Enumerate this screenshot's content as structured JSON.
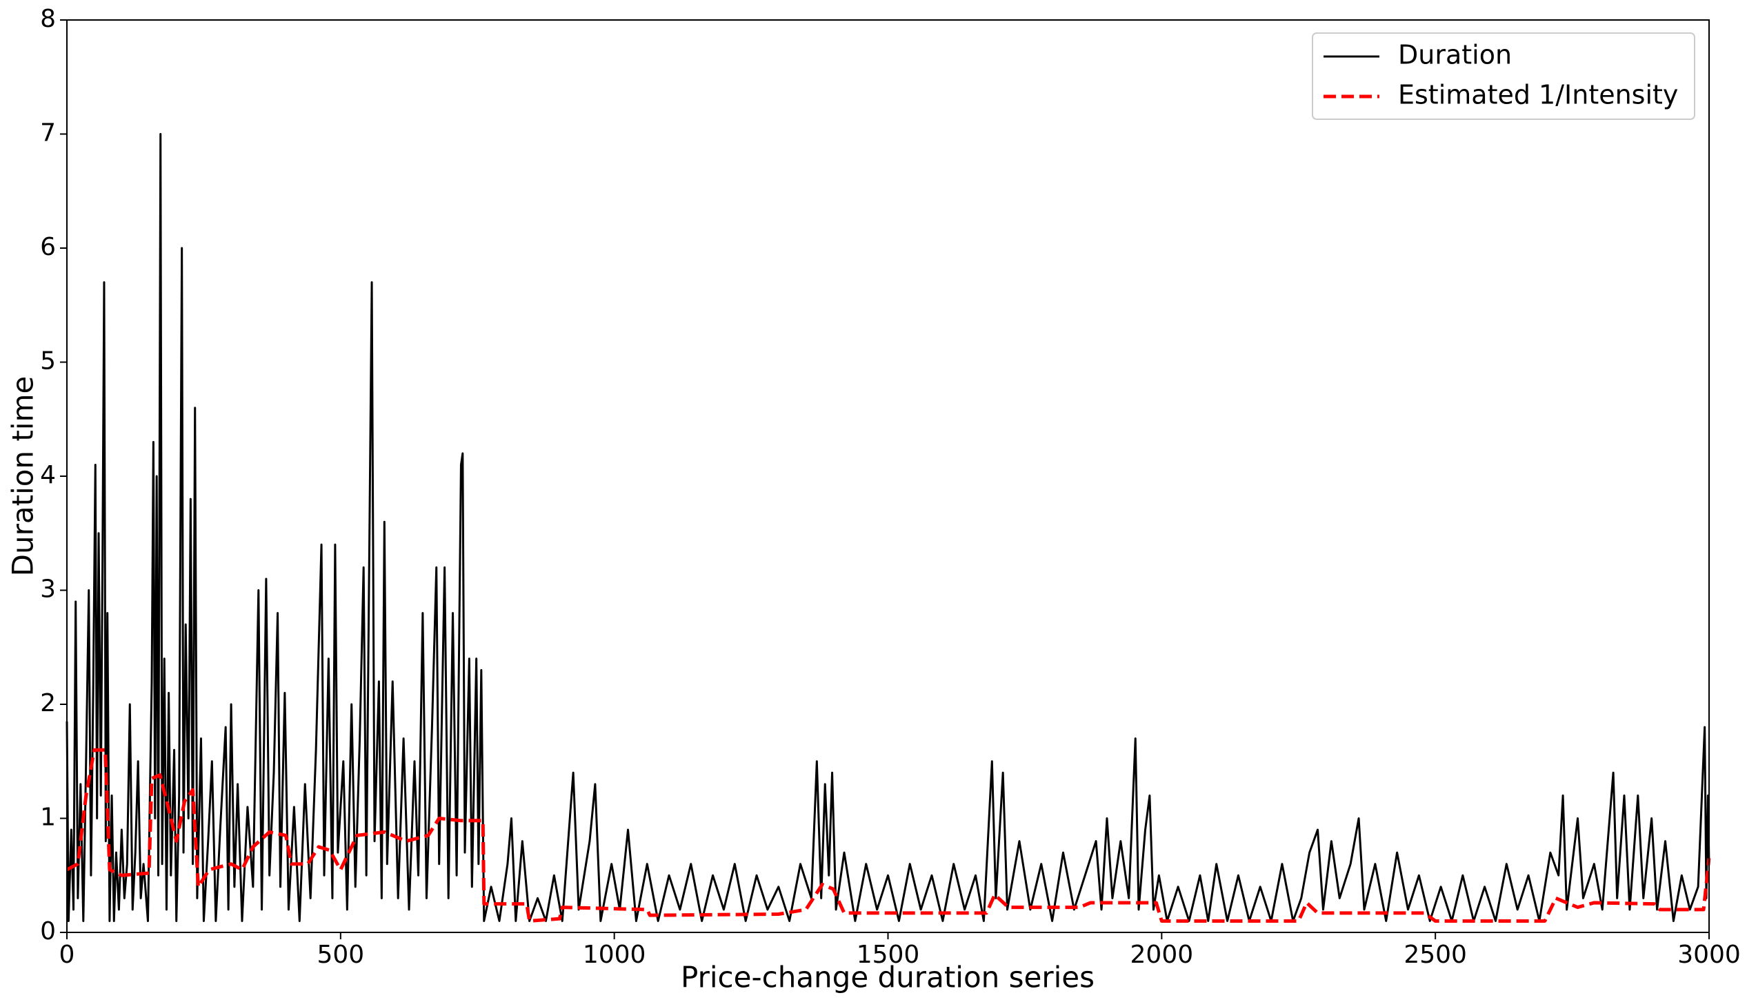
{
  "chart_data": {
    "type": "line",
    "xlabel": "Price-change duration series",
    "ylabel": "Duration time",
    "xlim": [
      0,
      3000
    ],
    "xticks": [
      0,
      500,
      1000,
      1500,
      2000,
      2500,
      3000
    ],
    "ylim": [
      0,
      8
    ],
    "yticks": [
      0,
      1,
      2,
      3,
      4,
      5,
      6,
      7,
      8
    ],
    "legend": "upper right",
    "series": [
      {
        "name": "Duration",
        "color": "#000000",
        "dash": "solid",
        "x": [
          0,
          3,
          8,
          12,
          16,
          20,
          25,
          30,
          35,
          40,
          44,
          48,
          52,
          55,
          58,
          62,
          65,
          68,
          71,
          74,
          78,
          82,
          86,
          90,
          95,
          100,
          105,
          110,
          115,
          120,
          125,
          130,
          135,
          140,
          148,
          155,
          158,
          161,
          164,
          167,
          171,
          174,
          178,
          182,
          186,
          190,
          196,
          200,
          205,
          210,
          213,
          217,
          222,
          226,
          230,
          234,
          238,
          245,
          250,
          258,
          265,
          272,
          280,
          290,
          295,
          300,
          306,
          312,
          320,
          330,
          340,
          350,
          356,
          364,
          370,
          378,
          385,
          390,
          398,
          405,
          415,
          425,
          435,
          445,
          455,
          465,
          470,
          478,
          485,
          490,
          495,
          505,
          512,
          520,
          527,
          535,
          542,
          547,
          557,
          562,
          570,
          575,
          580,
          585,
          595,
          605,
          615,
          625,
          635,
          642,
          650,
          657,
          667,
          675,
          680,
          690,
          697,
          705,
          712,
          720,
          723,
          727,
          735,
          740,
          748,
          752,
          757,
          762,
          775,
          790,
          805,
          812,
          820,
          832,
          845,
          860,
          875,
          890,
          905,
          925,
          935,
          955,
          965,
          975,
          995,
          1010,
          1025,
          1040,
          1060,
          1080,
          1100,
          1120,
          1140,
          1160,
          1180,
          1200,
          1220,
          1240,
          1260,
          1280,
          1300,
          1320,
          1340,
          1360,
          1370,
          1378,
          1385,
          1392,
          1398,
          1405,
          1420,
          1440,
          1460,
          1480,
          1500,
          1520,
          1540,
          1560,
          1580,
          1600,
          1620,
          1640,
          1660,
          1675,
          1690,
          1697,
          1710,
          1718,
          1740,
          1760,
          1780,
          1800,
          1820,
          1840,
          1860,
          1880,
          1890,
          1900,
          1910,
          1925,
          1940,
          1952,
          1958,
          1970,
          1978,
          1985,
          1995,
          2010,
          2030,
          2050,
          2070,
          2085,
          2100,
          2120,
          2140,
          2160,
          2180,
          2200,
          2220,
          2240,
          2255,
          2270,
          2285,
          2295,
          2310,
          2325,
          2345,
          2360,
          2370,
          2390,
          2410,
          2430,
          2450,
          2470,
          2490,
          2510,
          2530,
          2550,
          2570,
          2590,
          2610,
          2630,
          2650,
          2670,
          2690,
          2710,
          2725,
          2733,
          2740,
          2760,
          2770,
          2790,
          2805,
          2825,
          2832,
          2845,
          2855,
          2870,
          2880,
          2895,
          2905,
          2920,
          2935,
          2950,
          2965,
          2980,
          2992,
          2995,
          2998,
          3000
        ],
        "values": [
          1.85,
          0.1,
          0.9,
          0.2,
          2.9,
          0.3,
          1.3,
          0.1,
          1.5,
          3.0,
          0.5,
          2.1,
          4.1,
          1.0,
          3.5,
          1.2,
          3.2,
          5.7,
          0.8,
          2.8,
          0.1,
          1.2,
          0.1,
          0.7,
          0.2,
          0.9,
          0.3,
          0.6,
          2.0,
          0.2,
          0.7,
          1.5,
          0.3,
          0.6,
          0.1,
          2.2,
          4.3,
          1.0,
          4.0,
          0.5,
          7.0,
          0.6,
          2.4,
          0.2,
          2.1,
          0.5,
          1.6,
          0.1,
          1.2,
          6.0,
          0.7,
          2.7,
          1.0,
          3.8,
          0.6,
          4.6,
          0.3,
          1.7,
          0.1,
          0.8,
          1.5,
          0.1,
          0.9,
          1.8,
          0.2,
          2.0,
          0.4,
          1.3,
          0.1,
          1.1,
          0.4,
          3.0,
          0.2,
          3.1,
          0.5,
          1.4,
          2.8,
          0.4,
          2.1,
          0.2,
          1.1,
          0.1,
          1.3,
          0.3,
          1.6,
          3.4,
          0.5,
          2.4,
          0.3,
          3.4,
          0.7,
          1.5,
          0.2,
          2.0,
          0.4,
          1.7,
          3.2,
          0.5,
          5.7,
          0.8,
          2.2,
          0.3,
          3.6,
          0.6,
          2.2,
          0.3,
          1.7,
          0.2,
          1.5,
          0.5,
          2.8,
          0.3,
          1.8,
          3.2,
          0.6,
          3.2,
          0.3,
          2.8,
          0.5,
          4.1,
          4.2,
          0.7,
          2.4,
          0.4,
          2.4,
          0.6,
          2.3,
          0.1,
          0.4,
          0.1,
          0.6,
          1.0,
          0.1,
          0.8,
          0.1,
          0.3,
          0.1,
          0.5,
          0.1,
          1.4,
          0.2,
          0.8,
          1.3,
          0.1,
          0.6,
          0.2,
          0.9,
          0.1,
          0.6,
          0.1,
          0.5,
          0.2,
          0.6,
          0.1,
          0.5,
          0.2,
          0.6,
          0.1,
          0.5,
          0.2,
          0.4,
          0.1,
          0.6,
          0.3,
          1.5,
          0.3,
          1.3,
          0.5,
          1.4,
          0.2,
          0.7,
          0.1,
          0.6,
          0.2,
          0.5,
          0.1,
          0.6,
          0.2,
          0.5,
          0.1,
          0.6,
          0.2,
          0.5,
          0.1,
          1.5,
          0.3,
          1.4,
          0.2,
          0.8,
          0.2,
          0.6,
          0.1,
          0.7,
          0.2,
          0.5,
          0.8,
          0.2,
          1.0,
          0.3,
          0.8,
          0.3,
          1.7,
          0.2,
          0.9,
          1.2,
          0.2,
          0.5,
          0.1,
          0.4,
          0.1,
          0.5,
          0.1,
          0.6,
          0.1,
          0.5,
          0.1,
          0.4,
          0.1,
          0.6,
          0.1,
          0.3,
          0.7,
          0.9,
          0.2,
          0.8,
          0.3,
          0.6,
          1.0,
          0.2,
          0.6,
          0.1,
          0.7,
          0.2,
          0.5,
          0.1,
          0.4,
          0.1,
          0.5,
          0.1,
          0.4,
          0.1,
          0.6,
          0.2,
          0.5,
          0.1,
          0.7,
          0.5,
          1.2,
          0.2,
          1.0,
          0.3,
          0.6,
          0.2,
          1.4,
          0.3,
          1.2,
          0.2,
          1.2,
          0.3,
          1.0,
          0.2,
          0.8,
          0.1,
          0.5,
          0.2,
          0.4,
          1.8,
          0.3,
          1.2,
          0.6
        ]
      },
      {
        "name": "Estimated 1/Intensity",
        "color": "#ff0000",
        "dash": "dashed",
        "x": [
          0,
          20,
          35,
          50,
          70,
          78,
          100,
          150,
          155,
          170,
          185,
          200,
          215,
          230,
          240,
          260,
          300,
          320,
          340,
          370,
          400,
          410,
          440,
          460,
          480,
          500,
          530,
          580,
          620,
          660,
          680,
          720,
          760,
          762,
          840,
          845,
          900,
          905,
          1060,
          1065,
          1300,
          1350,
          1380,
          1400,
          1420,
          1680,
          1695,
          1720,
          1850,
          1870,
          1990,
          2000,
          2250,
          2265,
          2285,
          2480,
          2500,
          2700,
          2720,
          2760,
          2790,
          2900,
          2910,
          2990,
          3000
        ],
        "values": [
          0.55,
          0.6,
          1.2,
          1.6,
          1.6,
          0.55,
          0.5,
          0.52,
          1.35,
          1.38,
          1.1,
          0.8,
          1.15,
          1.25,
          0.4,
          0.55,
          0.6,
          0.55,
          0.75,
          0.88,
          0.85,
          0.6,
          0.6,
          0.75,
          0.72,
          0.55,
          0.85,
          0.88,
          0.8,
          0.85,
          1.0,
          0.98,
          0.98,
          0.25,
          0.25,
          0.1,
          0.12,
          0.22,
          0.2,
          0.15,
          0.16,
          0.2,
          0.42,
          0.38,
          0.17,
          0.17,
          0.33,
          0.22,
          0.22,
          0.26,
          0.26,
          0.1,
          0.1,
          0.26,
          0.17,
          0.17,
          0.1,
          0.1,
          0.3,
          0.22,
          0.26,
          0.25,
          0.2,
          0.2,
          0.65
        ]
      }
    ]
  }
}
